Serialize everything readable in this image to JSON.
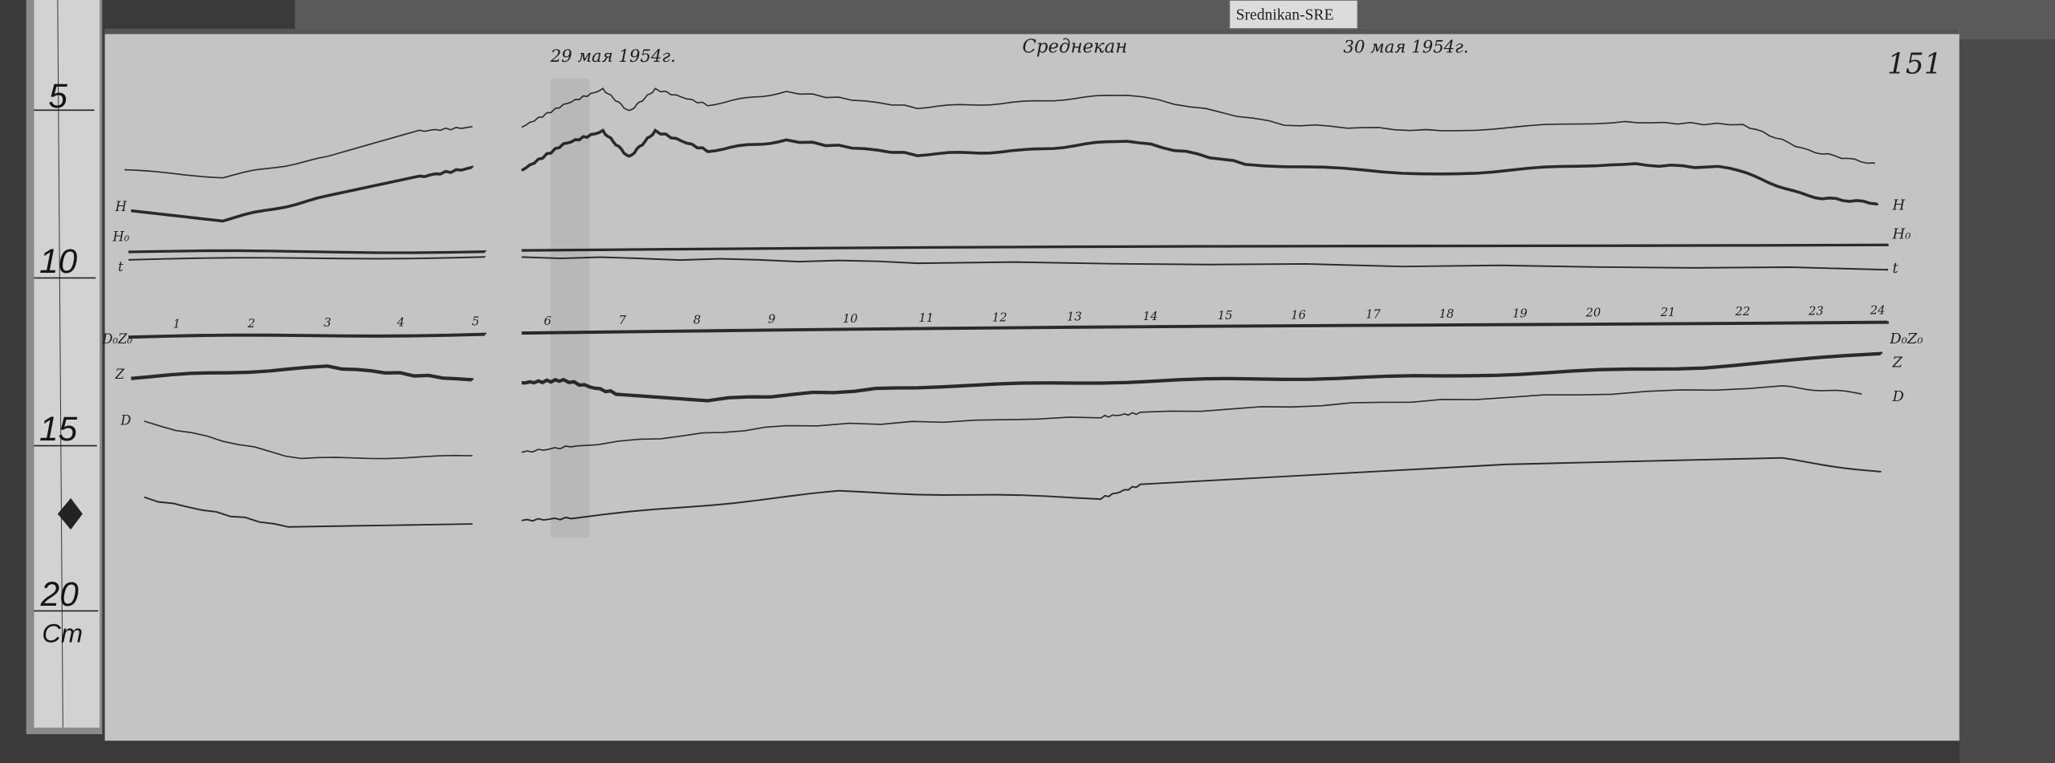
{
  "ruler": {
    "marks": [
      "5",
      "10",
      "15",
      "20"
    ],
    "unit": "Cm"
  },
  "tag": "Srednikan-SRE",
  "header": {
    "date_left": "29 мая 1954г.",
    "station": "Среднекан",
    "date_right": "30 мая 1954г.",
    "sheet_number": "151"
  },
  "trace_labels_left": [
    "H",
    "H₀",
    "t",
    "D₀Z₀",
    "Z",
    "D"
  ],
  "trace_labels_right": [
    "H",
    "H₀",
    "t",
    "D₀Z₀",
    "Z",
    "D"
  ],
  "hour_marks": [
    "1",
    "2",
    "3",
    "4",
    "5",
    "6",
    "7",
    "8",
    "9",
    "10",
    "11",
    "12",
    "13",
    "14",
    "15",
    "16",
    "17",
    "18",
    "19",
    "20",
    "21",
    "22",
    "23",
    "24"
  ],
  "colors": {
    "paper": "#c4c4c4",
    "ink": "#2a2a2a",
    "background": "#2a2a2a"
  }
}
